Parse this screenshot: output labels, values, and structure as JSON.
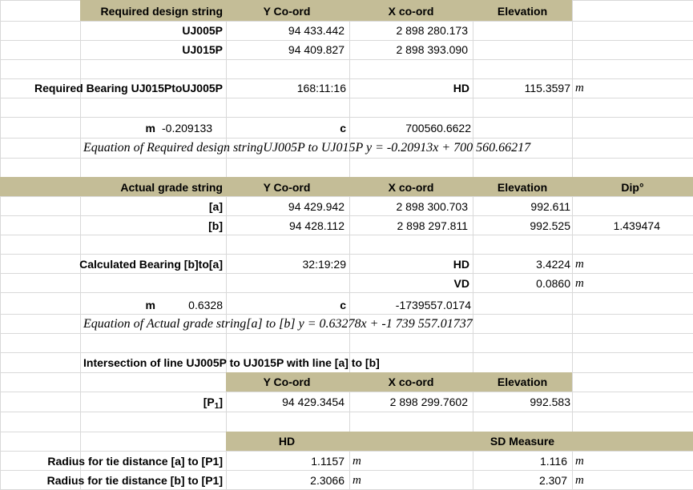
{
  "section1": {
    "header": {
      "label": "Required design string",
      "y": "Y Co-ord",
      "x": "X co-ord",
      "elev": "Elevation"
    },
    "rows": [
      {
        "name": "UJ005P",
        "y": "94 433.442",
        "x": "2 898 280.173"
      },
      {
        "name": "UJ015P",
        "y": "94 409.827",
        "x": "2 898 393.090"
      }
    ],
    "bearing_label": "Required Bearing UJ015PtoUJ005P",
    "bearing_value": "168:11:16",
    "hd_label": "HD",
    "hd_value": "115.3597",
    "unit_m": "m",
    "m_label": "m",
    "m_value": "-0.209133",
    "c_label": "c",
    "c_value": "700560.6622",
    "equation": "Equation of Required design stringUJ005P to UJ015P y = -0.20913x + 700 560.66217"
  },
  "section2": {
    "header": {
      "label": "Actual grade string",
      "y": "Y Co-ord",
      "x": "X co-ord",
      "elev": "Elevation",
      "dip": "Dip°"
    },
    "rows": [
      {
        "name": "[a]",
        "y": "94 429.942",
        "x": "2 898 300.703",
        "elev": "992.611",
        "dip": ""
      },
      {
        "name": "[b]",
        "y": "94 428.112",
        "x": "2 898 297.811",
        "elev": "992.525",
        "dip": "1.439474"
      }
    ],
    "bearing_label": "Calculated Bearing [b]to[a]",
    "bearing_value": "32:19:29",
    "hd_label": "HD",
    "hd_value": "3.4224",
    "vd_label": "VD",
    "vd_value": "0.0860",
    "unit_m": "m",
    "m_label": "m",
    "m_value": "0.6328",
    "c_label": "c",
    "c_value": "-1739557.0174",
    "equation": "Equation of Actual grade string[a] to [b] y = 0.63278x + -1 739 557.01737"
  },
  "section3": {
    "title": "Intersection of line UJ005P to UJ015P with line [a] to [b]",
    "header": {
      "y": "Y Co-ord",
      "x": "X co-ord",
      "elev": "Elevation"
    },
    "row": {
      "name_main": "[P",
      "name_sub": "1",
      "name_end": "]",
      "y": "94 429.3454",
      "x": "2 898 299.7602",
      "elev": "992.583"
    }
  },
  "section4": {
    "header": {
      "hd": "HD",
      "sd": "SD Measure"
    },
    "rows": [
      {
        "label": "Radius for tie distance [a] to [P1]",
        "hd": "1.1157",
        "sd": "1.116"
      },
      {
        "label": "Radius for tie distance [b] to [P1]",
        "hd": "2.3066",
        "sd": "2.307"
      }
    ],
    "unit_m": "m"
  }
}
